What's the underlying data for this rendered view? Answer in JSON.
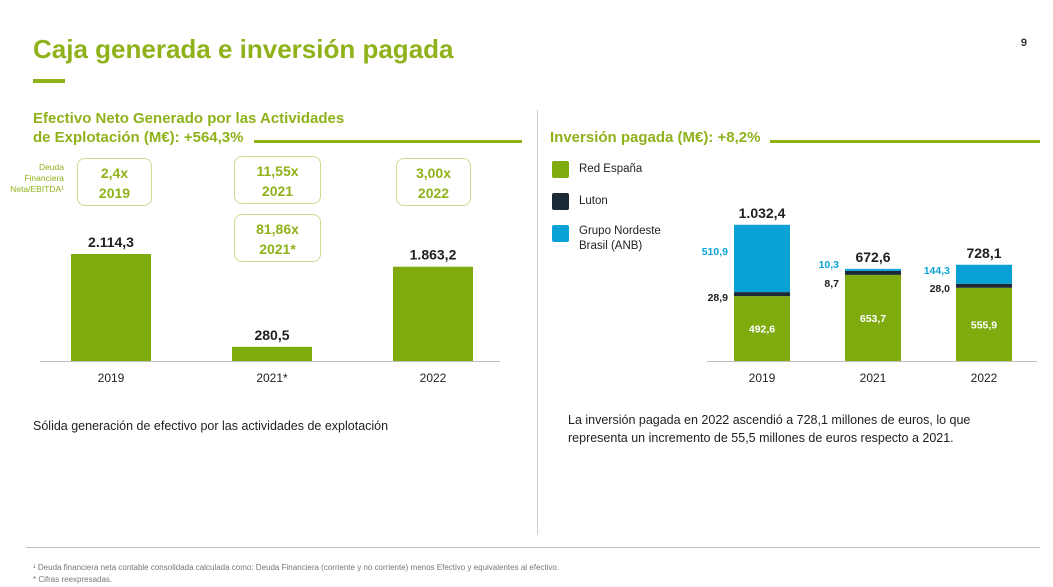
{
  "slide": {
    "title": "Caja generada e inversión pagada",
    "page_number": "9"
  },
  "left_section": {
    "title_line1": "Efectivo Neto Generado por las Actividades",
    "title_line2": "de Explotación (M€): +564,3%",
    "ratio_label": "Deuda Financiera Neta/EBITDA¹",
    "ratio_boxes": [
      {
        "value": "2,4x",
        "year": "2019"
      },
      {
        "value": "11,55x",
        "year": "2021"
      },
      {
        "value": "81,86x",
        "year": "2021*"
      },
      {
        "value": "3,00x",
        "year": "2022"
      }
    ],
    "description": "Sólida generación de efectivo por las actividades de explotación"
  },
  "right_section": {
    "title": "Inversión pagada (M€): +8,2%",
    "description_line1": "La inversión pagada en 2022 ascendió a 728,1 millones de euros, lo que",
    "description_line2": "representa un incremento de 55,5 millones de euros respecto a 2021."
  },
  "footnotes": {
    "note1": "¹ Deuda financiera neta contable consolidada calculada como: Deuda Financiera (corriente y no corriente) menos Efectivo y equivalentes al efectivo.",
    "note2": "* Cifras reexpresadas."
  },
  "colors": {
    "accent_green": "#8fb21b",
    "bar_green": "#7fab0f",
    "luton_dark": "#1c2a36",
    "anb_blue": "#0aa2d6"
  },
  "chart_data": [
    {
      "type": "bar",
      "title": "Efectivo Neto Generado por las Actividades de Explotación (M€): +564,3%",
      "categories": [
        "2019",
        "2021*",
        "2022"
      ],
      "values": [
        2114.3,
        280.5,
        1863.2
      ],
      "value_labels": [
        "2.114,3",
        "280,5",
        "1.863,2"
      ],
      "ylim": [
        0,
        2800
      ],
      "grid": false
    },
    {
      "type": "bar",
      "stacked": true,
      "title": "Inversión pagada (M€): +8,2%",
      "categories": [
        "2019",
        "2021",
        "2022"
      ],
      "legend_position": "left",
      "series": [
        {
          "name": "Red España",
          "color": "#7fab0f",
          "values": [
            492.6,
            653.7,
            555.9
          ],
          "labels": [
            "492,6",
            "653,7",
            "555,9"
          ]
        },
        {
          "name": "Luton",
          "color": "#1c2a36",
          "values": [
            28.9,
            8.7,
            28.0
          ],
          "labels": [
            "28,9",
            "8,7",
            "28,0"
          ]
        },
        {
          "name": "Grupo Nordeste Brasil (ANB)",
          "color": "#0aa2d6",
          "values": [
            510.9,
            10.3,
            144.3
          ],
          "labels": [
            "510,9",
            "10,3",
            "144,3"
          ]
        }
      ],
      "totals": [
        1032.4,
        672.6,
        728.1
      ],
      "total_labels": [
        "1.032,4",
        "672,6",
        "728,1"
      ],
      "ylim": [
        0,
        1100
      ],
      "grid": false
    }
  ]
}
